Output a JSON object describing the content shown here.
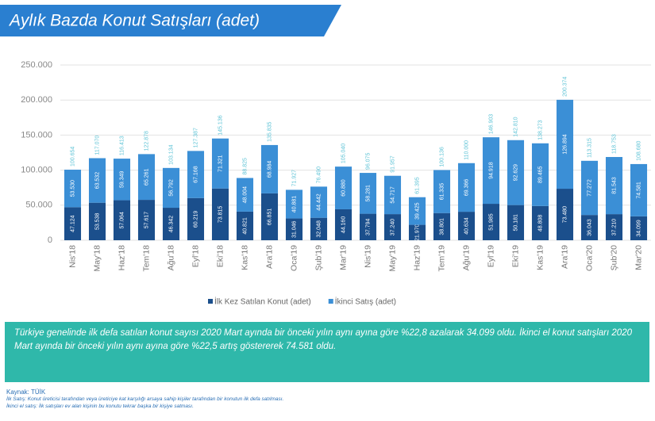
{
  "chart_data": {
    "type": "stacked_bar",
    "title": "Aylık Bazda Konut Satışları (adet)",
    "categories": [
      "Nis'18",
      "May'18",
      "Haz'18",
      "Tem'18",
      "Ağu'18",
      "Eyl'18",
      "Eki'18",
      "Kas'18",
      "Ara'18",
      "Oca'19",
      "Şub'19",
      "Mar'19",
      "Nis'19",
      "May'19",
      "Haz'19",
      "Tem'19",
      "Ağu'19",
      "Eyl'19",
      "Eki'19",
      "Kas'19",
      "Ara'19",
      "Oca'20",
      "Şub'20",
      "Mar'20"
    ],
    "series": [
      {
        "name": "İlk Kez Satılan Konut (adet)",
        "color": "#1b4f8c",
        "values": [
          47124,
          53538,
          57064,
          57617,
          46342,
          60219,
          73815,
          40821,
          66851,
          31046,
          32048,
          44160,
          37794,
          37240,
          21970,
          38801,
          40634,
          51985,
          50181,
          48808,
          73480,
          36043,
          37210,
          34099
        ],
        "value_labels": [
          "47.124",
          "53.538",
          "57.064",
          "57.617",
          "46.342",
          "60.219",
          "73.815",
          "40.821",
          "66.851",
          "31.046",
          "32.048",
          "44.160",
          "37.794",
          "37.240",
          "21.970",
          "38.801",
          "40.634",
          "51.985",
          "50.181",
          "48.808",
          "73.480",
          "36.043",
          "37.210",
          "34.099"
        ]
      },
      {
        "name": "İkinci Satış (adet)",
        "color": "#3b8fd6",
        "values": [
          53530,
          63532,
          59349,
          65261,
          56792,
          67168,
          71321,
          48004,
          68984,
          40881,
          44442,
          60880,
          58281,
          54717,
          39425,
          61335,
          69366,
          94918,
          92629,
          89465,
          126894,
          77272,
          81543,
          74581
        ],
        "value_labels": [
          "53.530",
          "63.532",
          "59.349",
          "65.261",
          "56.792",
          "67.168",
          "71.321",
          "48.004",
          "68.984",
          "40.881",
          "44.442",
          "60.880",
          "58.281",
          "54.717",
          "39.425",
          "61.335",
          "69.366",
          "94.918",
          "92.629",
          "89.465",
          "126.894",
          "77.272",
          "81.543",
          "74.581"
        ]
      }
    ],
    "totals": {
      "values": [
        100654,
        117070,
        116413,
        122878,
        103134,
        127387,
        145136,
        88825,
        135835,
        71927,
        76490,
        105040,
        96075,
        91957,
        61395,
        100136,
        110000,
        146903,
        142810,
        138273,
        200374,
        113315,
        118753,
        108680
      ],
      "value_labels": [
        "100.654",
        "117.070",
        "116.413",
        "122.878",
        "103.134",
        "127.387",
        "145.136",
        "88.825",
        "135.835",
        "71.927",
        "76.490",
        "105.040",
        "96.075",
        "91.957",
        "61.395",
        "100.136",
        "110.000",
        "146.903",
        "142.810",
        "138.273",
        "200.374",
        "113.315",
        "118.753",
        "108.680"
      ],
      "color": "#5ec3d6"
    },
    "ylim": [
      0,
      250000
    ],
    "yticks": [
      0,
      {
        "value": 50000,
        "label": "50.000"
      },
      {
        "value": 100000,
        "label": "100.000"
      },
      {
        "value": 150000,
        "label": "150.000"
      },
      {
        "value": 200000,
        "label": "200.000"
      },
      {
        "value": 250000,
        "label": "250.000"
      }
    ],
    "grid": true,
    "legend": "bottom"
  },
  "note": "Türkiye genelinde ilk defa satılan konut sayısı 2020 Mart ayında bir önceki yılın aynı ayına göre %22,8 azalarak 34.099 oldu. İkinci el konut satışları 2020 Mart ayında bir önceki yılın aynı ayına göre %22,5 artış göstererek 74.581 oldu.",
  "source": [
    "Kaynak: TÜİK",
    "İlk Satış: Konut üreticisi tarafından veya üreticiye kat karşılığı arsaya sahip kişiler tarafından bir konutun ilk defa satılması.",
    "İkinci el satış: İlk satışları ev alan kişinin bu konutu tekrar başka bir kişiye satması."
  ]
}
